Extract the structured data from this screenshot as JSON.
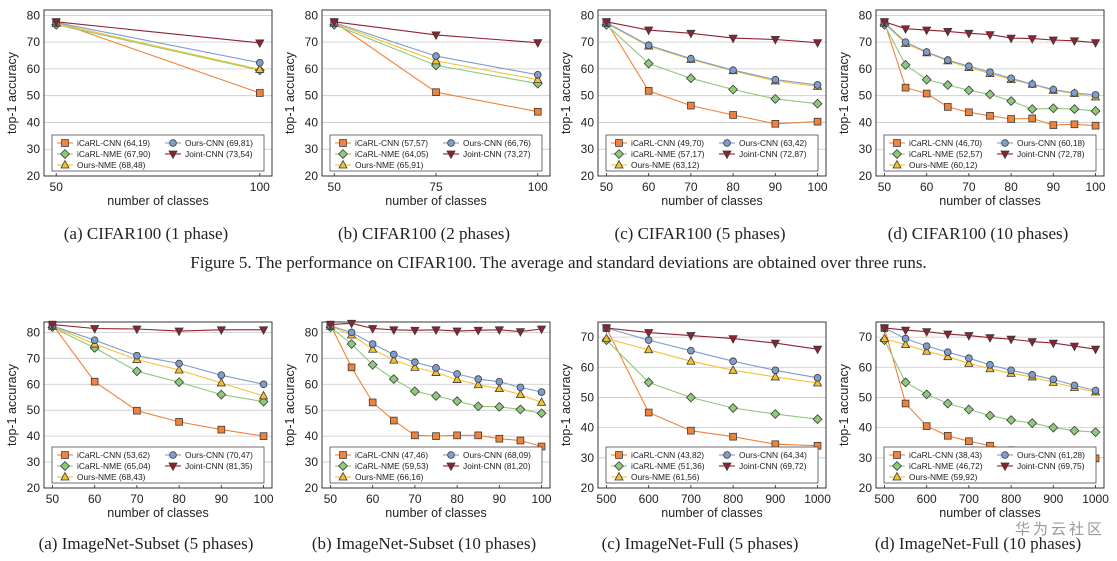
{
  "colors": {
    "icarl_cnn": "#f0823a",
    "icarl_nme": "#8fc97a",
    "ours_nme": "#f3c233",
    "ours_cnn": "#7e9ccd",
    "joint_cnn": "#8e2230"
  },
  "figure_captions": [
    "Figure 5. The performance on CIFAR100. The average and standard deviations are obtained over three runs."
  ],
  "watermark": "华为云社区",
  "chart_data": [
    {
      "type": "line",
      "caption": "(a) CIFAR100 (1 phase)",
      "xlabel": "number of classes",
      "ylabel": "top-1 accuracy",
      "xlim": [
        47,
        103
      ],
      "ylim": [
        20,
        82
      ],
      "xticks": [
        50,
        100
      ],
      "yticks": [
        20,
        30,
        40,
        50,
        60,
        70,
        80
      ],
      "grid": true,
      "legend": "bottom",
      "x": [
        50,
        100
      ],
      "series": [
        {
          "key": "icarl_cnn",
          "marker": "square",
          "legend": "iCaRL-CNN (64,19)",
          "values": [
            77.5,
            51.0
          ]
        },
        {
          "key": "icarl_nme",
          "marker": "diamond",
          "legend": "iCaRL-NME (67,90)",
          "values": [
            76.5,
            59.5
          ]
        },
        {
          "key": "ours_nme",
          "marker": "triangle",
          "legend": "Ours-NME (68,48)",
          "values": [
            77.0,
            59.8
          ]
        },
        {
          "key": "ours_cnn",
          "marker": "circle",
          "legend": "Ours-CNN (69,81)",
          "values": [
            77.3,
            62.3
          ]
        },
        {
          "key": "joint_cnn",
          "marker": "triangle-down",
          "legend": "Joint-CNN (73,54)",
          "values": [
            77.6,
            69.7
          ]
        }
      ]
    },
    {
      "type": "line",
      "caption": "(b) CIFAR100 (2 phases)",
      "xlabel": "number of classes",
      "ylabel": "top-1 accuracy",
      "xlim": [
        47,
        103
      ],
      "ylim": [
        20,
        82
      ],
      "xticks": [
        50,
        75,
        100
      ],
      "yticks": [
        20,
        30,
        40,
        50,
        60,
        70,
        80
      ],
      "grid": true,
      "legend": "bottom",
      "x": [
        50,
        75,
        100
      ],
      "series": [
        {
          "key": "icarl_cnn",
          "marker": "square",
          "legend": "iCaRL-CNN (57,57)",
          "values": [
            77.5,
            51.3,
            44.0
          ]
        },
        {
          "key": "icarl_nme",
          "marker": "diamond",
          "legend": "iCaRL-NME (64,05)",
          "values": [
            76.5,
            61.3,
            54.5
          ]
        },
        {
          "key": "ours_nme",
          "marker": "triangle",
          "legend": "Ours-NME (65,91)",
          "values": [
            77.0,
            63.0,
            56.0
          ]
        },
        {
          "key": "ours_cnn",
          "marker": "circle",
          "legend": "Ours-CNN (66,76)",
          "values": [
            77.3,
            64.8,
            57.8
          ]
        },
        {
          "key": "joint_cnn",
          "marker": "triangle-down",
          "legend": "Joint-CNN (73,27)",
          "values": [
            77.6,
            72.7,
            69.8
          ]
        }
      ]
    },
    {
      "type": "line",
      "caption": "(c) CIFAR100 (5 phases)",
      "xlabel": "number of classes",
      "ylabel": "top-1 accuracy",
      "xlim": [
        48,
        102
      ],
      "ylim": [
        20,
        82
      ],
      "xticks": [
        50,
        60,
        70,
        80,
        90,
        100
      ],
      "yticks": [
        20,
        30,
        40,
        50,
        60,
        70,
        80
      ],
      "grid": true,
      "legend": "bottom",
      "x": [
        50,
        60,
        70,
        80,
        90,
        100
      ],
      "series": [
        {
          "key": "icarl_cnn",
          "marker": "square",
          "legend": "iCaRL-CNN (49,70)",
          "values": [
            77.5,
            51.8,
            46.3,
            42.8,
            39.5,
            40.3
          ]
        },
        {
          "key": "icarl_nme",
          "marker": "diamond",
          "legend": "iCaRL-NME (57,17)",
          "values": [
            76.5,
            62.0,
            56.5,
            52.3,
            48.8,
            47.0
          ]
        },
        {
          "key": "ours_nme",
          "marker": "triangle",
          "legend": "Ours-NME (63,12)",
          "values": [
            77.0,
            68.5,
            63.5,
            59.3,
            55.5,
            53.5
          ]
        },
        {
          "key": "ours_cnn",
          "marker": "circle",
          "legend": "Ours-CNN (63,42)",
          "values": [
            77.3,
            68.8,
            63.8,
            59.5,
            56.0,
            54.0
          ]
        },
        {
          "key": "joint_cnn",
          "marker": "triangle-down",
          "legend": "Joint-CNN (72,87)",
          "values": [
            77.6,
            74.5,
            73.3,
            71.5,
            71.0,
            69.8
          ]
        }
      ]
    },
    {
      "type": "line",
      "caption": "(d) CIFAR100 (10 phases)",
      "xlabel": "number of classes",
      "ylabel": "top-1 accuracy",
      "xlim": [
        48,
        102
      ],
      "ylim": [
        20,
        82
      ],
      "xticks": [
        50,
        60,
        70,
        80,
        90,
        100
      ],
      "yticks": [
        20,
        30,
        40,
        50,
        60,
        70,
        80
      ],
      "grid": true,
      "legend": "bottom",
      "x": [
        50,
        55,
        60,
        65,
        70,
        75,
        80,
        85,
        90,
        95,
        100
      ],
      "series": [
        {
          "key": "icarl_cnn",
          "marker": "square",
          "legend": "iCaRL-CNN (46,70)",
          "values": [
            77.5,
            53.0,
            50.8,
            45.8,
            43.8,
            42.5,
            41.3,
            41.5,
            39.0,
            39.3,
            38.8
          ]
        },
        {
          "key": "icarl_nme",
          "marker": "diamond",
          "legend": "iCaRL-NME (52,57)",
          "values": [
            76.5,
            61.5,
            56.0,
            54.0,
            52.0,
            50.5,
            48.0,
            45.0,
            45.3,
            45.0,
            44.3
          ]
        },
        {
          "key": "ours_nme",
          "marker": "triangle",
          "legend": "Ours-NME (60,12)",
          "values": [
            77.0,
            69.5,
            66.0,
            63.0,
            60.5,
            58.3,
            56.0,
            54.3,
            52.0,
            50.8,
            49.5
          ]
        },
        {
          "key": "ours_cnn",
          "marker": "circle",
          "legend": "Ours-CNN (60,18)",
          "values": [
            77.3,
            70.0,
            66.3,
            63.3,
            61.0,
            58.8,
            56.5,
            54.3,
            52.3,
            51.0,
            50.3
          ]
        },
        {
          "key": "joint_cnn",
          "marker": "triangle-down",
          "legend": "Joint-CNN (72,78)",
          "values": [
            77.6,
            75.0,
            74.5,
            74.0,
            73.3,
            72.8,
            71.5,
            71.3,
            70.8,
            70.5,
            69.8
          ]
        }
      ]
    },
    {
      "type": "line",
      "caption": "(a) ImageNet-Subset (5 phases)",
      "xlabel": "number of classes",
      "ylabel": "top-1 accuracy",
      "xlim": [
        48,
        102
      ],
      "ylim": [
        20,
        84
      ],
      "xticks": [
        50,
        60,
        70,
        80,
        90,
        100
      ],
      "yticks": [
        20,
        30,
        40,
        50,
        60,
        70,
        80
      ],
      "grid": true,
      "legend": "bottom",
      "x": [
        50,
        60,
        70,
        80,
        90,
        100
      ],
      "series": [
        {
          "key": "icarl_cnn",
          "marker": "square",
          "legend": "iCaRL-CNN (53,62)",
          "values": [
            83.0,
            61.0,
            49.8,
            45.5,
            42.5,
            40.0
          ]
        },
        {
          "key": "icarl_nme",
          "marker": "diamond",
          "legend": "iCaRL-NME (65,04)",
          "values": [
            82.0,
            74.0,
            65.0,
            60.8,
            56.0,
            53.3
          ]
        },
        {
          "key": "ours_nme",
          "marker": "triangle",
          "legend": "Ours-NME (68,43)",
          "values": [
            82.3,
            75.5,
            69.5,
            65.5,
            60.5,
            55.5
          ]
        },
        {
          "key": "ours_cnn",
          "marker": "circle",
          "legend": "Ours-CNN (70,47)",
          "values": [
            82.5,
            77.0,
            71.0,
            68.0,
            63.5,
            60.0
          ]
        },
        {
          "key": "joint_cnn",
          "marker": "triangle-down",
          "legend": "Joint-CNN (81,35)",
          "values": [
            83.0,
            81.5,
            81.3,
            80.5,
            81.0,
            81.0
          ]
        }
      ]
    },
    {
      "type": "line",
      "caption": "(b) ImageNet-Subset (10 phases)",
      "xlabel": "number of classes",
      "ylabel": "top-1 accuracy",
      "xlim": [
        48,
        102
      ],
      "ylim": [
        20,
        84
      ],
      "xticks": [
        50,
        60,
        70,
        80,
        90,
        100
      ],
      "yticks": [
        20,
        30,
        40,
        50,
        60,
        70,
        80
      ],
      "grid": true,
      "legend": "bottom",
      "x": [
        50,
        55,
        60,
        65,
        70,
        75,
        80,
        85,
        90,
        95,
        100
      ],
      "series": [
        {
          "key": "icarl_cnn",
          "marker": "square",
          "legend": "iCaRL-CNN (47,46)",
          "values": [
            83.0,
            66.5,
            53.0,
            46.0,
            40.3,
            40.0,
            40.3,
            40.3,
            39.0,
            38.3,
            36.0
          ]
        },
        {
          "key": "icarl_nme",
          "marker": "diamond",
          "legend": "iCaRL-NME (59,53)",
          "values": [
            82.0,
            75.5,
            67.5,
            62.0,
            57.3,
            55.5,
            53.5,
            51.5,
            51.3,
            50.3,
            48.8
          ]
        },
        {
          "key": "ours_nme",
          "marker": "triangle",
          "legend": "Ours-NME (66,16)",
          "values": [
            82.3,
            79.0,
            73.5,
            69.3,
            66.5,
            64.5,
            61.8,
            59.8,
            58.3,
            56.0,
            53.0
          ]
        },
        {
          "key": "ours_cnn",
          "marker": "circle",
          "legend": "Ours-CNN (68,09)",
          "values": [
            82.5,
            80.0,
            75.5,
            71.5,
            68.5,
            66.3,
            64.0,
            62.0,
            61.0,
            58.8,
            57.0
          ]
        },
        {
          "key": "joint_cnn",
          "marker": "triangle-down",
          "legend": "Joint-CNN (81,20)",
          "values": [
            83.0,
            83.5,
            81.5,
            81.0,
            80.8,
            81.0,
            80.5,
            80.8,
            81.0,
            80.3,
            81.3
          ]
        }
      ]
    },
    {
      "type": "line",
      "caption": "(c) ImageNet-Full (5 phases)",
      "xlabel": "number of classes",
      "ylabel": "top-1 accuracy",
      "xlim": [
        480,
        1020
      ],
      "ylim": [
        20,
        75
      ],
      "xticks": [
        500,
        600,
        700,
        800,
        900,
        1000
      ],
      "yticks": [
        20,
        30,
        40,
        50,
        60,
        70
      ],
      "grid": true,
      "legend": "bottom",
      "x": [
        500,
        600,
        700,
        800,
        900,
        1000
      ],
      "series": [
        {
          "key": "icarl_cnn",
          "marker": "square",
          "legend": "iCaRL-CNN (43,82)",
          "values": [
            73.0,
            45.0,
            39.0,
            37.0,
            34.5,
            34.0
          ]
        },
        {
          "key": "icarl_nme",
          "marker": "diamond",
          "legend": "iCaRL-NME (51,36)",
          "values": [
            69.0,
            55.0,
            50.0,
            46.5,
            44.5,
            42.8
          ]
        },
        {
          "key": "ours_nme",
          "marker": "triangle",
          "legend": "Ours-NME (61,56)",
          "values": [
            69.5,
            65.8,
            62.0,
            59.0,
            56.8,
            54.8
          ]
        },
        {
          "key": "ours_cnn",
          "marker": "circle",
          "legend": "Ours-CNN (64,34)",
          "values": [
            73.0,
            69.0,
            65.5,
            62.0,
            59.0,
            56.5
          ]
        },
        {
          "key": "joint_cnn",
          "marker": "triangle-down",
          "legend": "Joint-CNN (69,72)",
          "values": [
            73.0,
            71.5,
            70.5,
            69.5,
            68.0,
            66.0
          ]
        }
      ]
    },
    {
      "type": "line",
      "caption": "(d) ImageNet-Full (10 phases)",
      "xlabel": "number of classes",
      "ylabel": "top-1 accuracy",
      "xlim": [
        480,
        1020
      ],
      "ylim": [
        20,
        75
      ],
      "xticks": [
        500,
        600,
        700,
        800,
        900,
        1000
      ],
      "yticks": [
        20,
        30,
        40,
        50,
        60,
        70
      ],
      "grid": true,
      "legend": "bottom",
      "x": [
        500,
        550,
        600,
        650,
        700,
        750,
        800,
        850,
        900,
        950,
        1000
      ],
      "series": [
        {
          "key": "icarl_cnn",
          "marker": "square",
          "legend": "iCaRL-CNN (38,43)",
          "values": [
            73.0,
            48.0,
            40.5,
            37.3,
            35.5,
            34.0,
            32.5,
            31.5,
            30.0,
            30.0,
            29.8
          ]
        },
        {
          "key": "icarl_nme",
          "marker": "diamond",
          "legend": "iCaRL-NME (46,72)",
          "values": [
            69.0,
            55.0,
            51.0,
            48.0,
            46.0,
            44.0,
            42.5,
            41.5,
            40.0,
            39.0,
            38.5
          ]
        },
        {
          "key": "ours_nme",
          "marker": "triangle",
          "legend": "Ours-NME (59,92)",
          "values": [
            69.5,
            67.5,
            65.3,
            63.5,
            61.3,
            59.5,
            58.0,
            56.8,
            55.0,
            53.3,
            51.8
          ]
        },
        {
          "key": "ours_cnn",
          "marker": "circle",
          "legend": "Ours-CNN (61,28)",
          "values": [
            73.0,
            69.5,
            67.0,
            65.0,
            63.0,
            60.8,
            59.0,
            57.5,
            56.0,
            54.0,
            52.3
          ]
        },
        {
          "key": "joint_cnn",
          "marker": "triangle-down",
          "legend": "Joint-CNN (69,75)",
          "values": [
            73.0,
            72.3,
            71.8,
            71.0,
            70.5,
            69.8,
            69.3,
            68.5,
            68.0,
            67.0,
            66.0
          ]
        }
      ]
    }
  ]
}
